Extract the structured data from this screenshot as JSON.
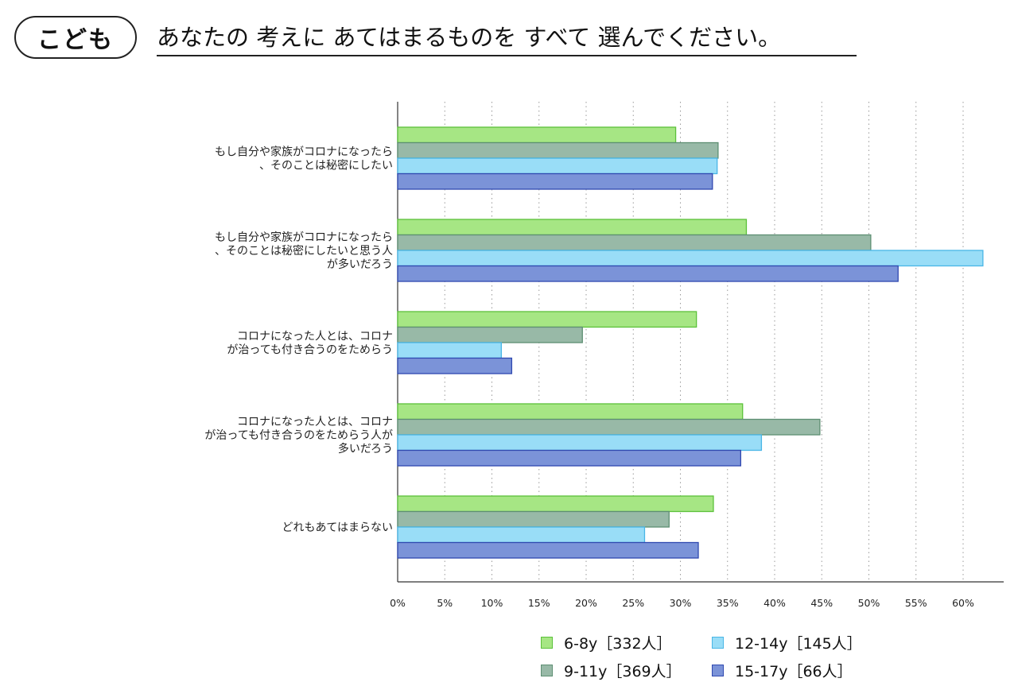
{
  "header": {
    "badge": "こども",
    "question": "あなたの 考えに あてはまるものを すべて 選んでください。"
  },
  "chart_data": {
    "type": "bar",
    "orientation": "horizontal",
    "categories": [
      [
        "もし自分や家族がコロナになったら",
        "、そのことは秘密にしたい"
      ],
      [
        "もし自分や家族がコロナになったら",
        "、そのことは秘密にしたいと思う人",
        "が多いだろう"
      ],
      [
        "コロナになった人とは、コロナ",
        "が治っても付き合うのをためらう"
      ],
      [
        "コロナになった人とは、コロナ",
        "が治っても付き合うのをためらう人が",
        "多いだろう"
      ],
      [
        "どれもあてはまらない"
      ]
    ],
    "series": [
      {
        "name": "6-8y［332人］",
        "color": "#a6e684",
        "stroke": "#5cc13a",
        "values": [
          29.5,
          37.0,
          31.7,
          36.6,
          33.5
        ]
      },
      {
        "name": "9-11y［369人］",
        "color": "#98b9a7",
        "stroke": "#5e8f73",
        "values": [
          34.0,
          50.2,
          19.6,
          44.8,
          28.8
        ]
      },
      {
        "name": "12-14y［145人］",
        "color": "#99ddf7",
        "stroke": "#49b6e6",
        "values": [
          33.9,
          62.1,
          11.0,
          38.6,
          26.2
        ]
      },
      {
        "name": "15-17y［66人］",
        "color": "#7b93d8",
        "stroke": "#3049b0",
        "values": [
          33.4,
          53.1,
          12.1,
          36.4,
          31.9
        ]
      }
    ],
    "xlim": [
      0,
      64
    ],
    "xticks": [
      0,
      5,
      10,
      15,
      20,
      25,
      30,
      35,
      40,
      45,
      50,
      55,
      60
    ],
    "xtick_labels": [
      "0%",
      "5%",
      "10%",
      "15%",
      "20%",
      "25%",
      "30%",
      "35%",
      "40%",
      "45%",
      "50%",
      "55%",
      "60%"
    ],
    "grid": "x-dotted",
    "legend_position": "bottom"
  }
}
